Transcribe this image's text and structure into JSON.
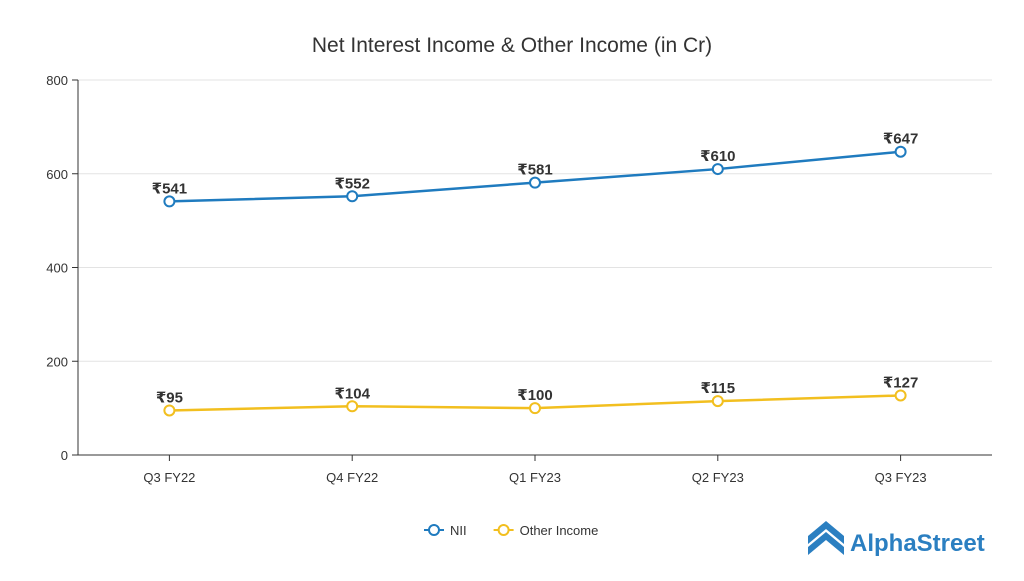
{
  "chart_data": {
    "type": "line",
    "title": "Net Interest Income & Other Income (in Cr)",
    "xlabel": "",
    "ylabel": "",
    "categories": [
      "Q3 FY22",
      "Q4 FY22",
      "Q1 FY23",
      "Q2 FY23",
      "Q3 FY23"
    ],
    "ylim": [
      0,
      800
    ],
    "yticks": [
      0,
      200,
      400,
      600,
      800
    ],
    "grid": true,
    "legend_position": "bottom",
    "series": [
      {
        "name": "NII",
        "color": "#1f7bbf",
        "values": [
          541,
          552,
          581,
          610,
          647
        ],
        "labels": [
          "₹541",
          "₹552",
          "₹581",
          "₹610",
          "₹647"
        ]
      },
      {
        "name": "Other Income",
        "color": "#f2bf1f",
        "values": [
          95,
          104,
          100,
          115,
          127
        ],
        "labels": [
          "₹95",
          "₹104",
          "₹100",
          "₹115",
          "₹127"
        ]
      }
    ]
  },
  "brand": {
    "name": "AlphaStreet",
    "color": "#2b7fc1"
  }
}
